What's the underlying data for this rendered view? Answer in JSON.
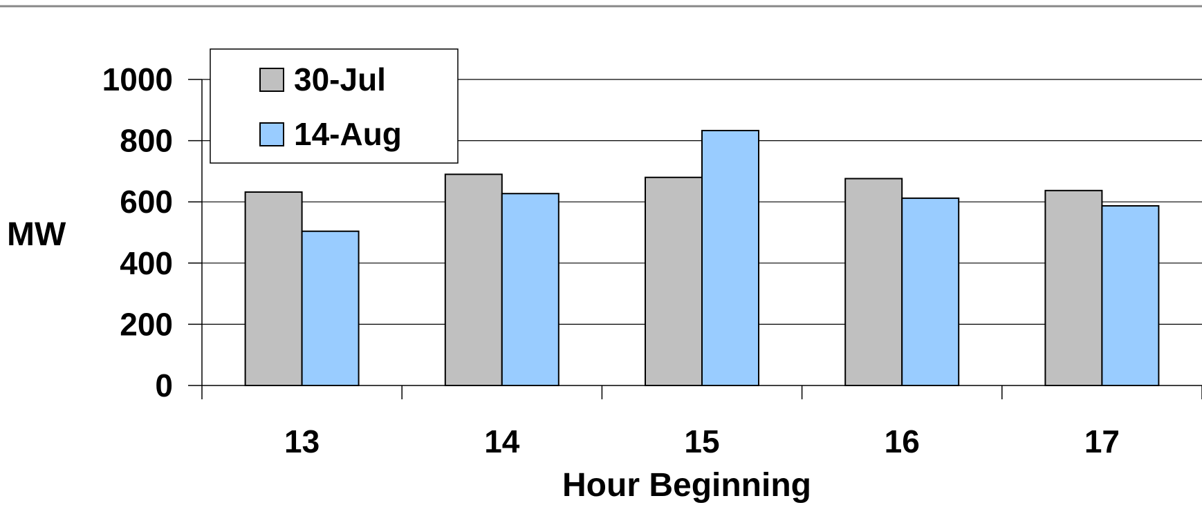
{
  "chart_data": {
    "type": "bar",
    "title": "",
    "xlabel": "Hour Beginning",
    "ylabel": "MW",
    "categories": [
      "13",
      "14",
      "15",
      "16",
      "17"
    ],
    "series": [
      {
        "name": "30-Jul",
        "values": [
          632,
          690,
          680,
          676,
          637
        ],
        "color": "#c0c0c0"
      },
      {
        "name": "14-Aug",
        "values": [
          504,
          627,
          833,
          612,
          587
        ],
        "color": "#99ccff"
      }
    ],
    "ylim": [
      0,
      1000
    ],
    "yticks": [
      0,
      200,
      400,
      600,
      800,
      1000
    ],
    "grid": true,
    "legend_position": "top-left"
  }
}
